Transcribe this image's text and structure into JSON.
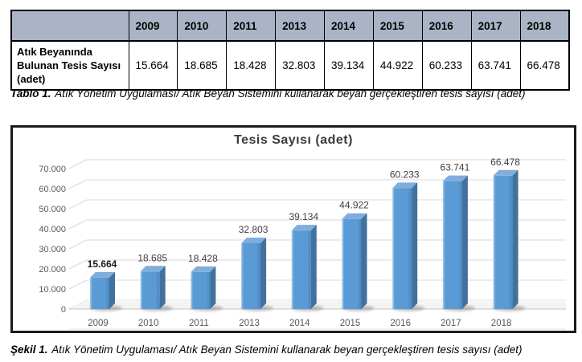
{
  "table": {
    "corner_label": "",
    "years": [
      "2009",
      "2010",
      "2011",
      "2013",
      "2014",
      "2015",
      "2016",
      "2017",
      "2018"
    ],
    "row_label": "Atık Beyanında Bulunan Tesis Sayısı (adet)",
    "values": [
      "15.664",
      "18.685",
      "18.428",
      "32.803",
      "39.134",
      "44.922",
      "60.233",
      "63.741",
      "66.478"
    ],
    "header_bg": "#AAB4C6",
    "caption_prefix": "Tablo 1.",
    "caption_text": "Atık Yönetim Uygulaması/ Atık Beyan Sistemini kullanarak beyan gerçekleştiren tesis sayısı (adet)"
  },
  "figure": {
    "caption_prefix": "Şekil 1.",
    "caption_text": "Atık Yönetim Uygulaması/ Atık Beyan Sistemini kullanarak beyan gerçekleştiren tesis sayısı (adet)"
  },
  "chart_data": {
    "type": "bar",
    "style": "3d",
    "title": "Tesis Sayısı (adet)",
    "categories": [
      "2009",
      "2010",
      "2011",
      "2013",
      "2014",
      "2015",
      "2016",
      "2017",
      "2018"
    ],
    "values": [
      15664,
      18685,
      18428,
      32803,
      39134,
      44922,
      60233,
      63741,
      66478
    ],
    "value_labels": [
      "15.664",
      "18.685",
      "18.428",
      "32.803",
      "39.134",
      "44.922",
      "60.233",
      "63.741",
      "66.478"
    ],
    "bold_label_index": 0,
    "ytick_labels": [
      "0",
      "10.000",
      "20.000",
      "30.000",
      "40.000",
      "50.000",
      "60.000",
      "70.000"
    ],
    "ytick_step": 10000,
    "ylim": [
      0,
      70000
    ],
    "grid": true,
    "legend": "none",
    "colors": {
      "bar_front": "#5B9BD5",
      "bar_front_light": "#A9CCEA",
      "bar_front_dark": "#4A86C2",
      "bar_top": "#7FAEDC",
      "bar_side": "#41719C",
      "gridline": "#D9D9D9",
      "floor_fill": "#F4F4F4",
      "floor_edge": "#C6C6C6",
      "shadow": "#8A8A8A",
      "axis_text": "#595959",
      "value_text": "#404040",
      "title_text": "#3B3B3B"
    }
  }
}
